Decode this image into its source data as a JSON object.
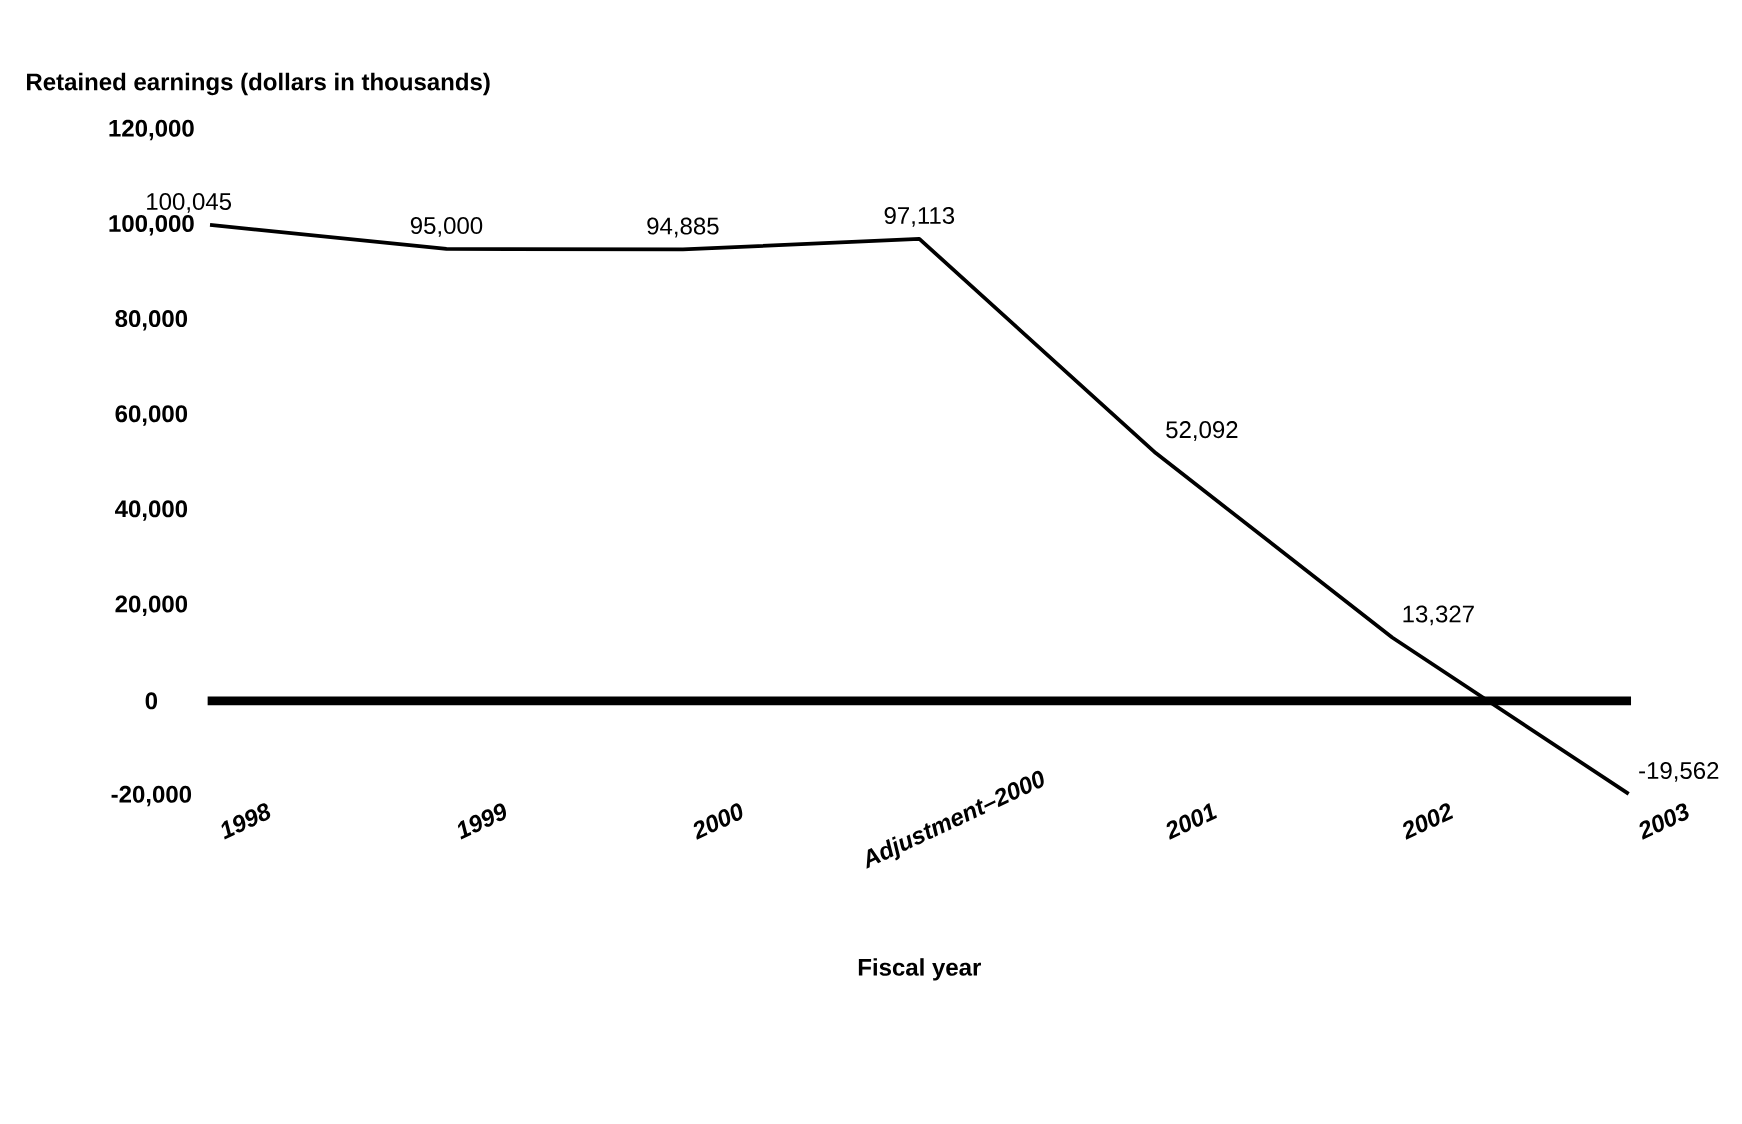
{
  "chart_data": {
    "type": "line",
    "ylabel": "Retained earnings (dollars in thousands)",
    "xlabel": "Fiscal year",
    "categories": [
      "1998",
      "1999",
      "2000",
      "Adjustment–2000",
      "2001",
      "2002",
      "2003"
    ],
    "series": [
      {
        "color": "#000000",
        "values": [
          100045,
          95000,
          94885,
          97113,
          52092,
          13327,
          -19562
        ],
        "value_labels": [
          "100,045",
          "95,000",
          "94,885",
          "97,113",
          "52,092",
          "13,327",
          "-19,562"
        ]
      }
    ],
    "ylim": [
      -20000,
      120000
    ],
    "yticks": [
      {
        "value": -20000,
        "label": "-20,000"
      },
      0,
      {
        "value": 20000,
        "label": "20,000"
      },
      {
        "value": 40000,
        "label": "40,000"
      },
      {
        "value": 60000,
        "label": "60,000"
      },
      {
        "value": 80000,
        "label": "80,000"
      },
      {
        "value": 100000,
        "label": "100,000"
      },
      {
        "value": 120000,
        "label": "120,000"
      }
    ],
    "ref_lines": [
      {
        "axis": "y",
        "value": 0,
        "color": "#000000"
      }
    ],
    "grid": false,
    "marker": "none",
    "line_style": "solid"
  }
}
